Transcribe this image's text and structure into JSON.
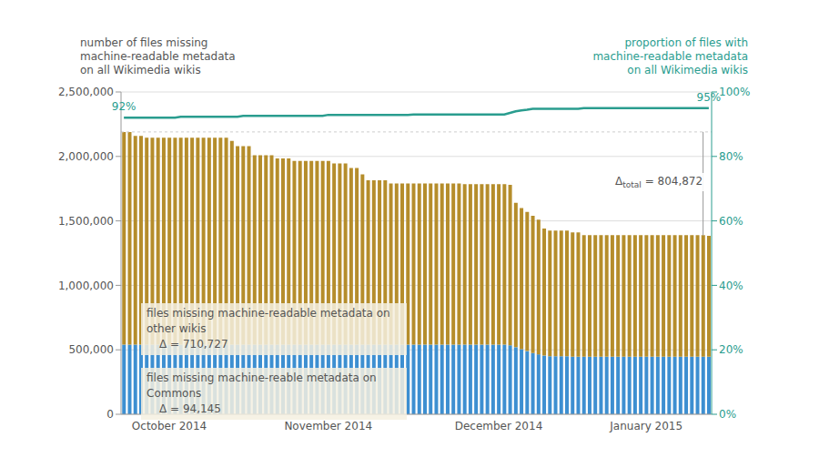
{
  "chart_data": {
    "type": "bar",
    "stacked": true,
    "grid": true,
    "y_label": [
      "number of files missing",
      "machine-readable metadata",
      "on all Wikimedia wikis"
    ],
    "y2_label": [
      "proportion of files with",
      "machine-readable metadata",
      "on all Wikimedia wikis"
    ],
    "categories": [
      null,
      null,
      null,
      null,
      null,
      null,
      null,
      null,
      "October 2014",
      null,
      null,
      null,
      null,
      null,
      null,
      null,
      null,
      null,
      null,
      null,
      null,
      null,
      null,
      null,
      null,
      null,
      null,
      null,
      null,
      null,
      null,
      null,
      null,
      null,
      null,
      null,
      "November 2014",
      null,
      null,
      null,
      null,
      null,
      null,
      null,
      null,
      null,
      null,
      null,
      null,
      null,
      null,
      null,
      null,
      null,
      null,
      null,
      null,
      null,
      null,
      null,
      null,
      null,
      null,
      null,
      null,
      null,
      "December 2014",
      null,
      null,
      null,
      null,
      null,
      null,
      null,
      null,
      null,
      null,
      null,
      null,
      null,
      null,
      null,
      null,
      null,
      null,
      null,
      null,
      null,
      null,
      null,
      null,
      null,
      "January 2015",
      null,
      null,
      null,
      null,
      null,
      null,
      null,
      null,
      null,
      null,
      null
    ],
    "ylim": [
      0,
      2500000
    ],
    "yticks": [
      0,
      {
        "value": 500000,
        "label": "500,000"
      },
      {
        "value": 1000000,
        "label": "1,000,000"
      },
      {
        "value": 1500000,
        "label": "1,500,000"
      },
      {
        "value": 2000000,
        "label": "2,000,000"
      },
      {
        "value": 2500000,
        "label": "2,500,000"
      }
    ],
    "y2lim": [
      0,
      100
    ],
    "y2ticks": [
      {
        "value": 0,
        "label": "0%"
      },
      {
        "value": 20,
        "label": "20%"
      },
      {
        "value": 40,
        "label": "40%"
      },
      {
        "value": 60,
        "label": "60%"
      },
      {
        "value": 80,
        "label": "80%"
      },
      {
        "value": 100,
        "label": "100%"
      }
    ],
    "series": [
      {
        "name": "files missing machine-reable metadata on Commons",
        "annotation": "Δ = 94,145",
        "type": "bar",
        "color": "#3d8fd1",
        "values": [
          540000,
          540000,
          540000,
          540000,
          540000,
          540000,
          540000,
          540000,
          540000,
          540000,
          540000,
          540000,
          540000,
          540000,
          540000,
          540000,
          540000,
          540000,
          540000,
          540000,
          540000,
          540000,
          540000,
          540000,
          540000,
          540000,
          540000,
          540000,
          540000,
          540000,
          540000,
          540000,
          540000,
          540000,
          540000,
          540000,
          540000,
          540000,
          540000,
          540000,
          540000,
          540000,
          540000,
          540000,
          540000,
          540000,
          540000,
          540000,
          540000,
          540000,
          540000,
          540000,
          540000,
          540000,
          540000,
          540000,
          540000,
          540000,
          540000,
          540000,
          540000,
          540000,
          540000,
          540000,
          540000,
          540000,
          540000,
          540000,
          535000,
          520000,
          505000,
          490000,
          475000,
          465000,
          455000,
          450000,
          450000,
          450000,
          450000,
          446000,
          446000,
          446000,
          446000,
          446000,
          446000,
          446000,
          446000,
          446000,
          446000,
          446000,
          446000,
          446000,
          446000,
          446000,
          446000,
          446000,
          446000,
          446000,
          446000,
          446000,
          446000,
          446000,
          446000,
          446000
        ]
      },
      {
        "name": "files missing machine-readable metadata on other wikis",
        "annotation": "Δ = 710,727",
        "type": "bar",
        "color": "#b58d2b",
        "values": [
          1650000,
          1650000,
          1620000,
          1620000,
          1605000,
          1605000,
          1605000,
          1605000,
          1605000,
          1605000,
          1605000,
          1605000,
          1605000,
          1605000,
          1605000,
          1605000,
          1605000,
          1605000,
          1605000,
          1580000,
          1540000,
          1540000,
          1540000,
          1470000,
          1470000,
          1470000,
          1470000,
          1445000,
          1445000,
          1445000,
          1425000,
          1425000,
          1425000,
          1425000,
          1425000,
          1425000,
          1425000,
          1405000,
          1405000,
          1405000,
          1370000,
          1370000,
          1320000,
          1275000,
          1275000,
          1275000,
          1275000,
          1250000,
          1250000,
          1250000,
          1250000,
          1250000,
          1250000,
          1250000,
          1250000,
          1250000,
          1250000,
          1250000,
          1250000,
          1250000,
          1245000,
          1245000,
          1245000,
          1245000,
          1245000,
          1245000,
          1245000,
          1245000,
          1245000,
          1120000,
          1095000,
          1080000,
          1065000,
          1045000,
          985000,
          975000,
          975000,
          975000,
          975000,
          964000,
          964000,
          944000,
          944000,
          944000,
          944000,
          944000,
          944000,
          944000,
          944000,
          944000,
          944000,
          944000,
          944000,
          944000,
          944000,
          944000,
          944000,
          944000,
          944000,
          944000,
          944000,
          944000,
          944000,
          939000
        ]
      },
      {
        "type": "line",
        "axis": "y2",
        "color": "#2a9d8f",
        "values": [
          92,
          92,
          92,
          92,
          92,
          92,
          92,
          92,
          92,
          92,
          92.3,
          92.3,
          92.3,
          92.3,
          92.3,
          92.3,
          92.3,
          92.3,
          92.3,
          92.3,
          92.3,
          92.6,
          92.6,
          92.6,
          92.6,
          92.6,
          92.6,
          92.6,
          92.6,
          92.6,
          92.6,
          92.6,
          92.6,
          92.6,
          92.6,
          92.6,
          92.9,
          92.9,
          92.9,
          92.9,
          92.9,
          92.9,
          92.9,
          92.9,
          92.9,
          92.9,
          92.9,
          92.9,
          92.9,
          92.9,
          92.9,
          93,
          93,
          93,
          93,
          93,
          93,
          93,
          93,
          93,
          93,
          93,
          93,
          93,
          93,
          93,
          93,
          93,
          93.5,
          94,
          94.3,
          94.5,
          94.8,
          94.8,
          94.8,
          94.8,
          94.8,
          94.8,
          94.8,
          94.8,
          94.8,
          95,
          95,
          95,
          95,
          95,
          95,
          95,
          95,
          95,
          95,
          95,
          95,
          95,
          95,
          95,
          95,
          95,
          95,
          95,
          95,
          95,
          95,
          95
        ],
        "value_labels": [
          "92%",
          null,
          null,
          null,
          null,
          null,
          null,
          null,
          null,
          null,
          null,
          null,
          null,
          null,
          null,
          null,
          null,
          null,
          null,
          null,
          null,
          null,
          null,
          null,
          null,
          null,
          null,
          null,
          null,
          null,
          null,
          null,
          null,
          null,
          null,
          null,
          null,
          null,
          null,
          null,
          null,
          null,
          null,
          null,
          null,
          null,
          null,
          null,
          null,
          null,
          null,
          null,
          null,
          null,
          null,
          null,
          null,
          null,
          null,
          null,
          null,
          null,
          null,
          null,
          null,
          null,
          null,
          null,
          null,
          null,
          null,
          null,
          null,
          null,
          null,
          null,
          null,
          null,
          null,
          null,
          null,
          null,
          null,
          null,
          null,
          null,
          null,
          null,
          null,
          null,
          null,
          null,
          null,
          null,
          null,
          null,
          null,
          null,
          null,
          null,
          null,
          null,
          null,
          "95%"
        ]
      }
    ],
    "annotations": [
      {
        "text": "Δ",
        "subscript": "total",
        "suffix": " = 804,872"
      }
    ]
  }
}
